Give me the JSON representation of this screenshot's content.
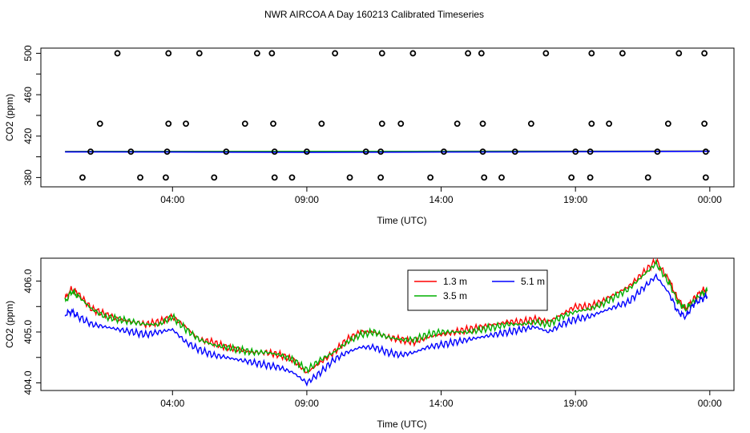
{
  "page": {
    "title": "NWR AIRCOA A  Day 160213  Calibrated Timeseries"
  },
  "chart_data": [
    {
      "type": "scatter",
      "xlabel": "Time (UTC)",
      "ylabel": "CO2 (ppm)",
      "xticks": [
        {
          "value": 4,
          "label": "04:00"
        },
        {
          "value": 9,
          "label": "09:00"
        },
        {
          "value": 14,
          "label": "14:00"
        },
        {
          "value": 19,
          "label": "19:00"
        },
        {
          "value": 24,
          "label": "00:00"
        }
      ],
      "yticks": [
        380,
        420,
        460,
        500
      ],
      "ytick_minor": [
        400,
        440,
        480
      ],
      "xlim": [
        -0.9,
        24.9
      ],
      "ylim": [
        371,
        505
      ],
      "grid": false,
      "markers": {
        "y500": [
          1.95,
          3.85,
          5.0,
          7.15,
          7.7,
          10.05,
          11.8,
          12.95,
          15.0,
          15.5,
          17.9,
          19.6,
          20.75,
          22.85,
          23.8
        ],
        "y432": [
          1.3,
          3.85,
          4.5,
          6.7,
          7.75,
          9.55,
          11.8,
          12.5,
          14.6,
          15.55,
          17.35,
          19.6,
          20.25,
          22.45,
          23.8
        ],
        "y405": [
          0.95,
          2.45,
          3.8,
          6.0,
          7.8,
          9.0,
          11.2,
          11.75,
          14.1,
          15.55,
          16.75,
          19.0,
          19.55,
          22.05,
          23.85
        ],
        "y380": [
          0.65,
          2.8,
          3.75,
          5.55,
          7.8,
          8.45,
          10.6,
          11.75,
          13.6,
          15.6,
          16.25,
          18.85,
          19.55,
          21.7,
          23.85
        ]
      },
      "series": [
        {
          "color": "#ff0000",
          "x": [
            0,
            24
          ],
          "y": [
            405.1,
            405.4
          ]
        },
        {
          "color": "#00b000",
          "x": [
            0,
            24
          ],
          "y": [
            405.1,
            405.4
          ]
        },
        {
          "color": "#0000ff",
          "x": [
            0,
            4,
            9,
            14,
            19,
            24
          ],
          "y": [
            404.8,
            404.6,
            404.4,
            404.6,
            404.9,
            405.3
          ]
        }
      ]
    },
    {
      "type": "line",
      "xlabel": "Time (UTC)",
      "ylabel": "CO2 (ppm)",
      "xticks": [
        {
          "value": 4,
          "label": "04:00"
        },
        {
          "value": 9,
          "label": "09:00"
        },
        {
          "value": 14,
          "label": "14:00"
        },
        {
          "value": 19,
          "label": "19:00"
        },
        {
          "value": 24,
          "label": "00:00"
        }
      ],
      "yticks": [
        "404.0",
        "405.0",
        "406.0"
      ],
      "ytick_minor": [
        404.5,
        405.5
      ],
      "xlim": [
        -0.9,
        24.9
      ],
      "ylim": [
        403.85,
        406.45
      ],
      "grid": false,
      "legend": {
        "position": "top-right",
        "entries": [
          {
            "label": "1.3 m",
            "color": "#ff0000"
          },
          {
            "label": "5.1 m",
            "color": "#0000ff"
          },
          {
            "label": "3.5 m",
            "color": "#00b000"
          }
        ]
      },
      "series": [
        {
          "name": "1.3 m",
          "color": "#ff0000",
          "x": [
            0,
            0.25,
            0.5,
            1,
            1.5,
            2,
            2.5,
            3,
            3.5,
            4,
            4.5,
            5,
            5.5,
            6,
            6.5,
            7,
            7.5,
            8,
            8.5,
            9,
            9.5,
            10,
            10.5,
            11,
            11.5,
            12,
            12.5,
            13,
            13.5,
            14,
            14.5,
            15,
            15.5,
            16,
            16.5,
            17,
            17.5,
            18,
            18.5,
            19,
            19.5,
            20,
            20.5,
            21,
            21.5,
            22,
            22.5,
            22.8,
            23.1,
            23.4,
            23.7,
            23.9
          ],
          "y": [
            405.65,
            405.85,
            405.75,
            405.45,
            405.35,
            405.25,
            405.2,
            405.15,
            405.2,
            405.3,
            405.1,
            404.85,
            404.8,
            404.7,
            404.65,
            404.6,
            404.6,
            404.55,
            404.45,
            404.2,
            404.4,
            404.6,
            404.85,
            405.0,
            405.0,
            404.9,
            404.85,
            404.8,
            404.9,
            404.95,
            405.0,
            405.05,
            405.1,
            405.15,
            405.2,
            405.2,
            405.25,
            405.2,
            405.35,
            405.5,
            405.5,
            405.6,
            405.75,
            405.9,
            406.15,
            406.4,
            406.0,
            405.65,
            405.45,
            405.65,
            405.8,
            405.85
          ]
        },
        {
          "name": "3.5 m",
          "color": "#00b000",
          "x": [
            0,
            0.25,
            0.5,
            1,
            1.5,
            2,
            2.5,
            3,
            3.5,
            4,
            4.5,
            5,
            5.5,
            6,
            6.5,
            7,
            7.5,
            8,
            8.5,
            9,
            9.5,
            10,
            10.5,
            11,
            11.5,
            12,
            12.5,
            13,
            13.5,
            14,
            14.5,
            15,
            15.5,
            16,
            16.5,
            17,
            17.5,
            18,
            18.5,
            19,
            19.5,
            20,
            20.5,
            21,
            21.5,
            22,
            22.5,
            22.8,
            23.1,
            23.4,
            23.7,
            23.9
          ],
          "y": [
            405.6,
            405.8,
            405.7,
            405.45,
            405.3,
            405.25,
            405.2,
            405.15,
            405.15,
            405.3,
            405.05,
            404.85,
            404.75,
            404.7,
            404.65,
            404.6,
            404.6,
            404.55,
            404.45,
            404.25,
            404.45,
            404.6,
            404.8,
            404.95,
            405.0,
            404.9,
            404.85,
            404.85,
            404.95,
            405.0,
            405.0,
            405.0,
            405.05,
            405.1,
            405.15,
            405.15,
            405.2,
            405.15,
            405.3,
            405.4,
            405.45,
            405.55,
            405.7,
            405.85,
            406.1,
            406.35,
            405.95,
            405.6,
            405.45,
            405.6,
            405.75,
            405.8
          ]
        },
        {
          "name": "5.1 m",
          "color": "#0000ff",
          "x": [
            0,
            0.25,
            0.5,
            1,
            1.5,
            2,
            2.5,
            3,
            3.5,
            4,
            4.5,
            5,
            5.5,
            6,
            6.5,
            7,
            7.5,
            8,
            8.5,
            9,
            9.5,
            10,
            10.5,
            11,
            11.5,
            12,
            12.5,
            13,
            13.5,
            14,
            14.5,
            15,
            15.5,
            16,
            16.5,
            17,
            17.5,
            18,
            18.5,
            19,
            19.5,
            20,
            20.5,
            21,
            21.5,
            22,
            22.5,
            22.8,
            23.1,
            23.4,
            23.7,
            23.9
          ],
          "y": [
            405.35,
            405.4,
            405.3,
            405.15,
            405.1,
            405.05,
            405.0,
            404.95,
            405.0,
            405.05,
            404.8,
            404.65,
            404.55,
            404.5,
            404.45,
            404.4,
            404.35,
            404.3,
            404.2,
            404.0,
            404.2,
            404.45,
            404.6,
            404.7,
            404.7,
            404.6,
            404.55,
            404.6,
            404.7,
            404.75,
            404.8,
            404.85,
            404.9,
            404.95,
            405.0,
            405.05,
            405.1,
            405.0,
            405.15,
            405.25,
            405.3,
            405.4,
            405.5,
            405.6,
            405.85,
            406.1,
            405.75,
            405.4,
            405.3,
            405.55,
            405.65,
            405.7
          ]
        }
      ]
    }
  ]
}
